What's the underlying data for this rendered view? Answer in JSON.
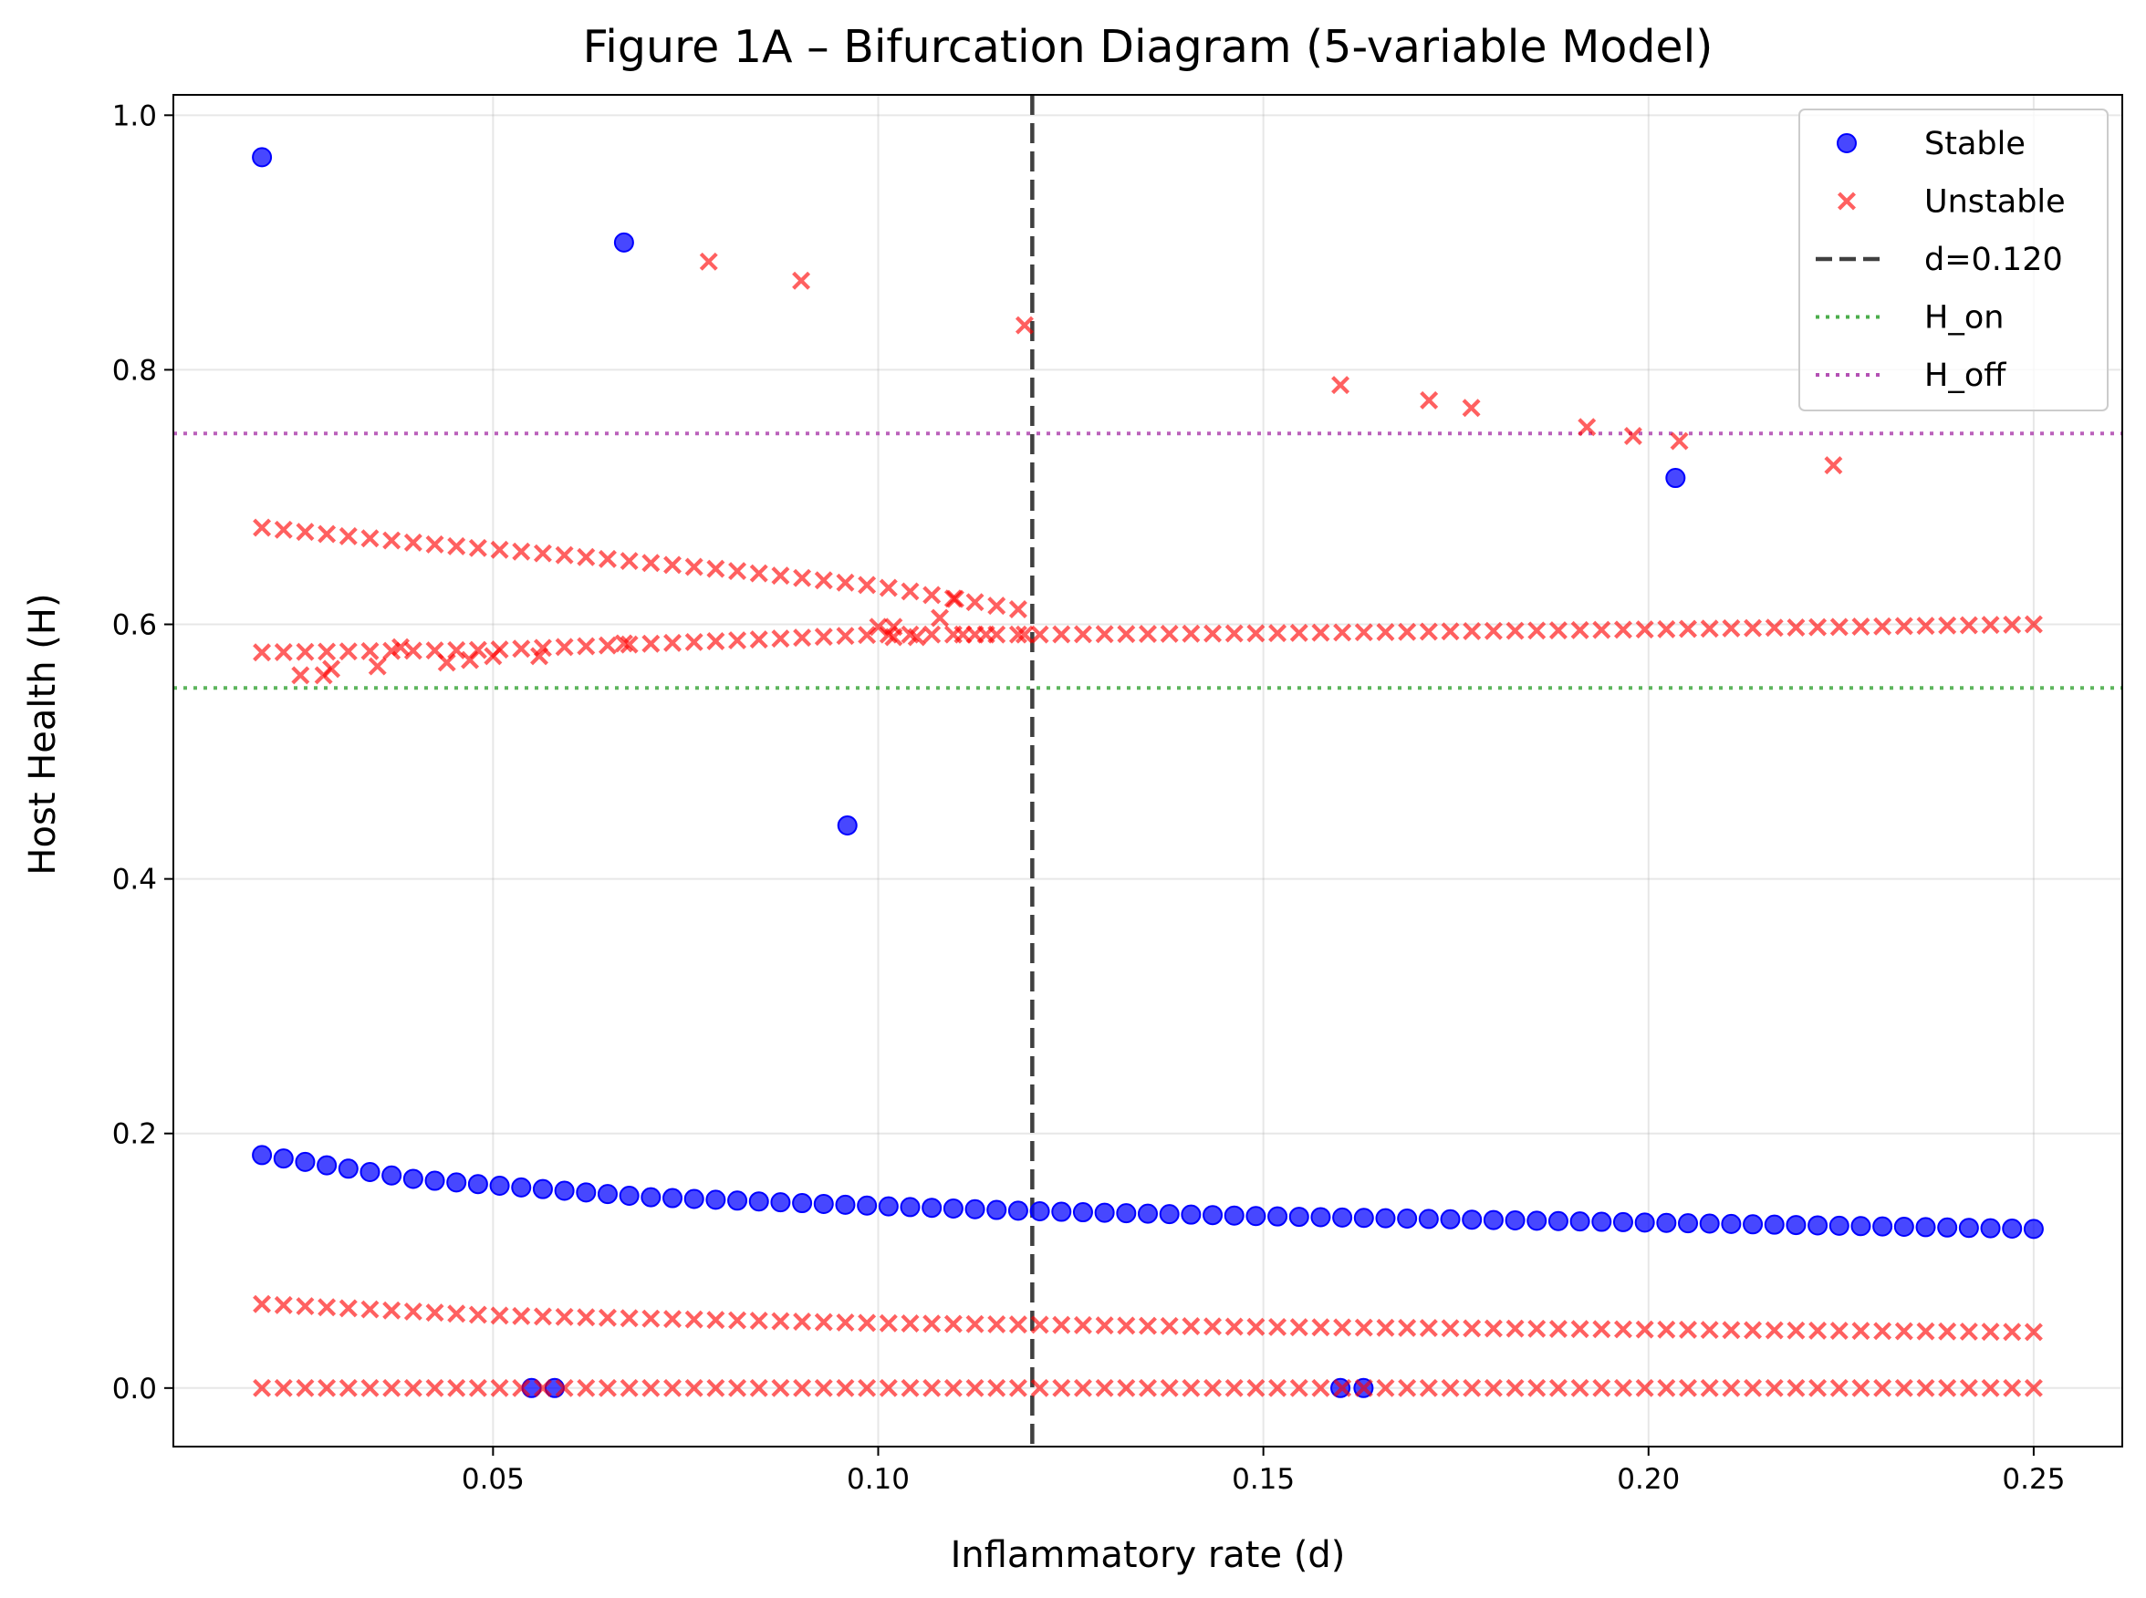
{
  "chart_data": {
    "type": "scatter",
    "title": "Figure 1A – Bifurcation Diagram (5-variable Model)",
    "xlabel": "Inflammatory rate (d)",
    "ylabel": "Host Health (H)",
    "xlim": [
      0.0085,
      0.2615
    ],
    "ylim": [
      -0.046,
      1.016
    ],
    "xticks": [
      0.05,
      0.1,
      0.15,
      0.2,
      0.25
    ],
    "xtick_labels": [
      "0.05",
      "0.10",
      "0.15",
      "0.20",
      "0.25"
    ],
    "yticks": [
      0.0,
      0.2,
      0.4,
      0.6,
      0.8,
      1.0
    ],
    "ytick_labels": [
      "0.0",
      "0.2",
      "0.4",
      "0.6",
      "0.8",
      "1.0"
    ],
    "grid": true,
    "legend_position": "top-right",
    "legend": [
      {
        "label": "Stable",
        "kind": "circle",
        "color": "#0000ff"
      },
      {
        "label": "Unstable",
        "kind": "x",
        "color": "#ff0000"
      },
      {
        "label": "d=0.120",
        "kind": "dashed",
        "color": "#404040"
      },
      {
        "label": "H_on",
        "kind": "dotted",
        "color": "#4cae4c"
      },
      {
        "label": "H_off",
        "kind": "dotted",
        "color": "#b450b4"
      }
    ],
    "reference_lines": [
      {
        "orientation": "vertical",
        "value": 0.12,
        "color": "#404040",
        "style": "dashed"
      },
      {
        "orientation": "horizontal",
        "value": 0.55,
        "color": "#4cae4c",
        "style": "dotted"
      },
      {
        "orientation": "horizontal",
        "value": 0.75,
        "color": "#b450b4",
        "style": "dotted"
      }
    ],
    "d_range": {
      "start": 0.02,
      "end": 0.25,
      "count": 83
    },
    "series": [
      {
        "name": "Stable",
        "marker": "circle",
        "color": "#0000ff",
        "branches": [
          {
            "curve": [
              [
                0.02,
                0.183
              ],
              [
                0.04,
                0.164
              ],
              [
                0.07,
                0.15
              ],
              [
                0.1,
                0.143
              ],
              [
                0.12,
                0.139
              ],
              [
                0.15,
                0.135
              ],
              [
                0.2,
                0.13
              ],
              [
                0.25,
                0.125
              ]
            ]
          }
        ],
        "points": [
          [
            0.02,
            0.967
          ],
          [
            0.067,
            0.9
          ],
          [
            0.096,
            0.442
          ],
          [
            0.2035,
            0.715
          ],
          [
            0.055,
            0.0
          ],
          [
            0.058,
            0.0
          ],
          [
            0.16,
            0.0
          ],
          [
            0.163,
            0.0
          ]
        ]
      },
      {
        "name": "Unstable",
        "marker": "x",
        "color": "#ff0000",
        "branches": [
          {
            "curve": [
              [
                0.02,
                0.0
              ],
              [
                0.25,
                0.0
              ]
            ]
          },
          {
            "curve": [
              [
                0.02,
                0.066
              ],
              [
                0.05,
                0.057
              ],
              [
                0.1,
                0.051
              ],
              [
                0.15,
                0.048
              ],
              [
                0.2,
                0.046
              ],
              [
                0.25,
                0.044
              ]
            ]
          },
          {
            "curve": [
              [
                0.02,
                0.676
              ],
              [
                0.04,
                0.664
              ],
              [
                0.06,
                0.654
              ],
              [
                0.08,
                0.643
              ],
              [
                0.1,
                0.63
              ],
              [
                0.11,
                0.62
              ],
              [
                0.12,
                0.61
              ]
            ]
          },
          {
            "curve": [
              [
                0.02,
                0.578
              ],
              [
                0.05,
                0.58
              ],
              [
                0.08,
                0.587
              ],
              [
                0.1,
                0.592
              ],
              [
                0.12,
                0.592
              ],
              [
                0.15,
                0.593
              ],
              [
                0.2,
                0.596
              ],
              [
                0.25,
                0.6
              ]
            ]
          }
        ],
        "points": [
          [
            0.025,
            0.56
          ],
          [
            0.028,
            0.56
          ],
          [
            0.029,
            0.565
          ],
          [
            0.035,
            0.567
          ],
          [
            0.038,
            0.582
          ],
          [
            0.044,
            0.57
          ],
          [
            0.047,
            0.572
          ],
          [
            0.05,
            0.575
          ],
          [
            0.056,
            0.575
          ],
          [
            0.067,
            0.585
          ],
          [
            0.078,
            0.885
          ],
          [
            0.09,
            0.87
          ],
          [
            0.1,
            0.598
          ],
          [
            0.102,
            0.598
          ],
          [
            0.102,
            0.59
          ],
          [
            0.105,
            0.59
          ],
          [
            0.108,
            0.605
          ],
          [
            0.11,
            0.62
          ],
          [
            0.111,
            0.592
          ],
          [
            0.114,
            0.592
          ],
          [
            0.119,
            0.835
          ],
          [
            0.119,
            0.592
          ],
          [
            0.16,
            0.788
          ],
          [
            0.1715,
            0.776
          ],
          [
            0.177,
            0.77
          ],
          [
            0.192,
            0.755
          ],
          [
            0.198,
            0.748
          ],
          [
            0.204,
            0.744
          ],
          [
            0.224,
            0.725
          ]
        ]
      }
    ]
  }
}
